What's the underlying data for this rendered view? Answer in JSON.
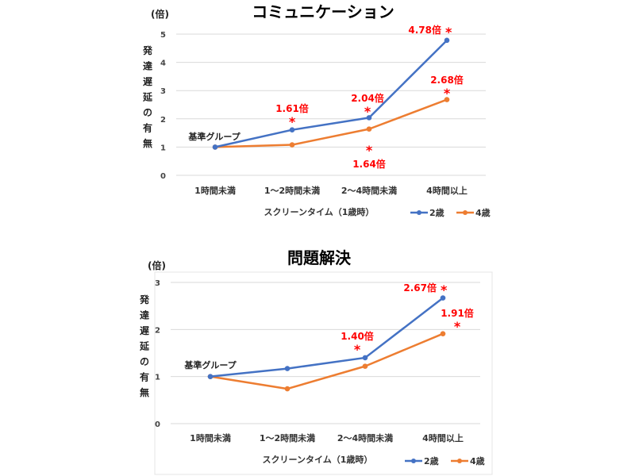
{
  "chart_data": [
    {
      "type": "line",
      "title": "コミュニケーション",
      "unit_label": "(倍)",
      "ylabel": "発達遅延の有無",
      "xlabel": "スクリーンタイム（1歳時）",
      "categories": [
        "1時間未満",
        "1〜2時間未満",
        "2〜4時間未満",
        "4時間以上"
      ],
      "ylim": [
        0,
        5
      ],
      "yticks": [
        0,
        1,
        2,
        3,
        4,
        5
      ],
      "grid": true,
      "legend": "bottom-right",
      "baseline_label": "基準グループ",
      "series": [
        {
          "name": "2歳",
          "color": "#4472c4",
          "values": [
            1,
            1.61,
            2.04,
            4.78
          ],
          "labels": [
            null,
            "1.61倍",
            "2.04倍",
            "4.78倍"
          ]
        },
        {
          "name": "4歳",
          "color": "#ed7d31",
          "values": [
            1,
            1.08,
            1.64,
            2.68
          ],
          "labels": [
            null,
            null,
            "1.64倍",
            "2.68倍"
          ]
        }
      ],
      "significance_mark": "*"
    },
    {
      "type": "line",
      "title": "問題解決",
      "unit_label": "(倍)",
      "ylabel": "発達遅延の有無",
      "xlabel": "スクリーンタイム（1歳時）",
      "categories": [
        "1時間未満",
        "1〜2時間未満",
        "2〜4時間未満",
        "4時間以上"
      ],
      "ylim": [
        0,
        3
      ],
      "yticks": [
        0,
        1,
        2,
        3
      ],
      "grid": true,
      "legend": "bottom-right",
      "baseline_label": "基準グループ",
      "series": [
        {
          "name": "2歳",
          "color": "#4472c4",
          "values": [
            1,
            1.17,
            1.4,
            2.67
          ],
          "labels": [
            null,
            null,
            "1.40倍",
            "2.67倍"
          ]
        },
        {
          "name": "4歳",
          "color": "#ed7d31",
          "values": [
            1,
            0.74,
            1.22,
            1.91
          ],
          "labels": [
            null,
            null,
            null,
            "1.91倍"
          ]
        }
      ],
      "significance_mark": "*"
    }
  ],
  "label_color": "#ff0000"
}
